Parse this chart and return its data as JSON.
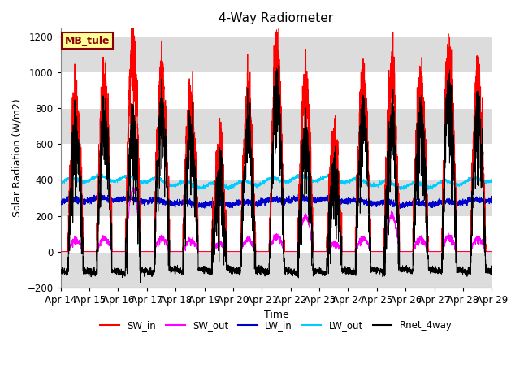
{
  "title": "4-Way Radiometer",
  "xlabel": "Time",
  "ylabel": "Solar Radiation (W/m2)",
  "ylim": [
    -200,
    1250
  ],
  "yticks": [
    -200,
    0,
    200,
    400,
    600,
    800,
    1000,
    1200
  ],
  "x_labels": [
    "Apr 14",
    "Apr 15",
    "Apr 16",
    "Apr 17",
    "Apr 18",
    "Apr 19",
    "Apr 20",
    "Apr 21",
    "Apr 22",
    "Apr 23",
    "Apr 24",
    "Apr 25",
    "Apr 26",
    "Apr 27",
    "Apr 28",
    "Apr 29"
  ],
  "station_label": "MB_tule",
  "legend_entries": [
    {
      "label": "SW_in",
      "color": "#FF0000"
    },
    {
      "label": "SW_out",
      "color": "#FF00FF"
    },
    {
      "label": "LW_in",
      "color": "#0000CC"
    },
    {
      "label": "LW_out",
      "color": "#00CCFF"
    },
    {
      "label": "Rnet_4way",
      "color": "#000000"
    }
  ],
  "background_color": "#FFFFFF",
  "plot_bg_color": "#FFFFFF",
  "grid_stripe_color": "#DCDCDC",
  "grid_line_color": "#FFFFFF",
  "num_days": 15,
  "points_per_day": 288,
  "day_start": 0.25,
  "day_end": 0.79
}
